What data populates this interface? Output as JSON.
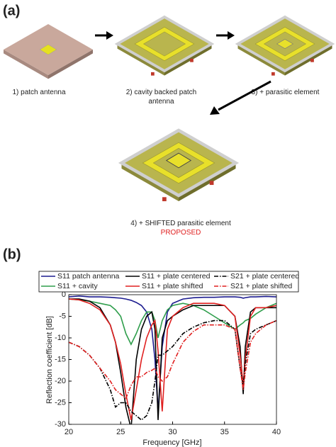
{
  "panel_a": {
    "label": "(a)",
    "captions": [
      "1)  patch antenna",
      "2) cavity backed patch antenna",
      "3) + parasitic element",
      "4) + SHIFTED parasitic element"
    ],
    "proposed": "PROPOSED"
  },
  "chart_data": {
    "type": "line",
    "panel_label": "(b)",
    "x_label": "Frequency [GHz]",
    "y_label": "Reflection coefficient [dB]",
    "xlim": [
      20,
      40
    ],
    "xticks": [
      20,
      25,
      30,
      35,
      40
    ],
    "ylim": [
      -30,
      0
    ],
    "yticks": [
      -30,
      -25,
      -20,
      -15,
      -10,
      -5,
      0
    ],
    "grid": false,
    "legend": "top",
    "x": [
      20,
      21,
      22,
      23,
      24,
      24.5,
      25,
      25.5,
      26,
      26.5,
      27,
      27.5,
      28,
      28.3,
      28.6,
      29,
      29.5,
      30,
      31,
      32,
      33,
      34,
      35,
      36,
      36.5,
      36.8,
      37,
      37.5,
      38,
      39,
      40
    ],
    "series": [
      {
        "name": "S11 patch antenna",
        "color": "#1c1c8f",
        "style": "solid",
        "values": [
          -0.5,
          -0.3,
          -0.5,
          -0.5,
          -0.6,
          -0.7,
          -0.8,
          -1,
          -1.3,
          -1.8,
          -2.5,
          -4,
          -8,
          -15,
          -27,
          -12,
          -4,
          -2,
          -1,
          -0.7,
          -0.6,
          -0.6,
          -0.5,
          -0.5,
          -0.6,
          -0.8,
          -0.7,
          -0.5,
          -0.5,
          -0.4,
          -0.5
        ]
      },
      {
        "name": "S11 + cavity",
        "color": "#2f9e4c",
        "style": "solid",
        "values": [
          -1,
          -1.2,
          -1.5,
          -2,
          -2.5,
          -3.5,
          -5,
          -9,
          -11.5,
          -9,
          -6,
          -4,
          -4,
          -6,
          -10,
          -6,
          -3.5,
          -2.5,
          -2,
          -2.5,
          -3.5,
          -5,
          -6.5,
          -8,
          -7,
          -6.5,
          -6,
          -5.5,
          -4.5,
          -3,
          -2
        ]
      },
      {
        "name": "S11 + plate centered",
        "color": "#000000",
        "style": "solid",
        "values": [
          -1,
          -1,
          -1.5,
          -3,
          -7,
          -11,
          -18,
          -26,
          -31,
          -15,
          -8,
          -5,
          -4,
          -8,
          -29,
          -10,
          -6,
          -5,
          -3.5,
          -2.5,
          -2.5,
          -2.5,
          -2.5,
          -5,
          -12,
          -23,
          -12,
          -4,
          -3,
          -3,
          -3
        ]
      },
      {
        "name": "S11 + plate shifted",
        "color": "#e02020",
        "style": "solid",
        "values": [
          -1,
          -1.2,
          -2,
          -3.5,
          -7,
          -11,
          -16,
          -23,
          -29,
          -22,
          -15,
          -10,
          -7,
          -6,
          -13,
          -27,
          -8,
          -5,
          -3,
          -2,
          -2,
          -2,
          -2.5,
          -5,
          -14,
          -21,
          -15,
          -5,
          -3,
          -3,
          -2.5
        ]
      },
      {
        "name": "S21 + plate centered",
        "color": "#000000",
        "style": "dashdot",
        "values": [
          -11,
          -12,
          -14,
          -17,
          -22,
          -26,
          -25,
          -25,
          -27,
          -28,
          -29,
          -28,
          -25,
          -20,
          -14,
          -14,
          -13,
          -12,
          -9,
          -7.5,
          -6.5,
          -6,
          -6,
          -8,
          -17,
          -21,
          -16,
          -9,
          -8,
          -7,
          -6
        ]
      },
      {
        "name": "S21 + plate shifted",
        "color": "#e02020",
        "style": "dashdot",
        "values": [
          -11,
          -12,
          -14,
          -17,
          -20,
          -22,
          -23,
          -24,
          -21,
          -19,
          -19,
          -18,
          -17.5,
          -17,
          -19,
          -20,
          -19,
          -16,
          -11,
          -8.5,
          -7,
          -7,
          -7,
          -8,
          -17,
          -22,
          -18,
          -11,
          -9,
          -7,
          -6
        ]
      }
    ]
  }
}
